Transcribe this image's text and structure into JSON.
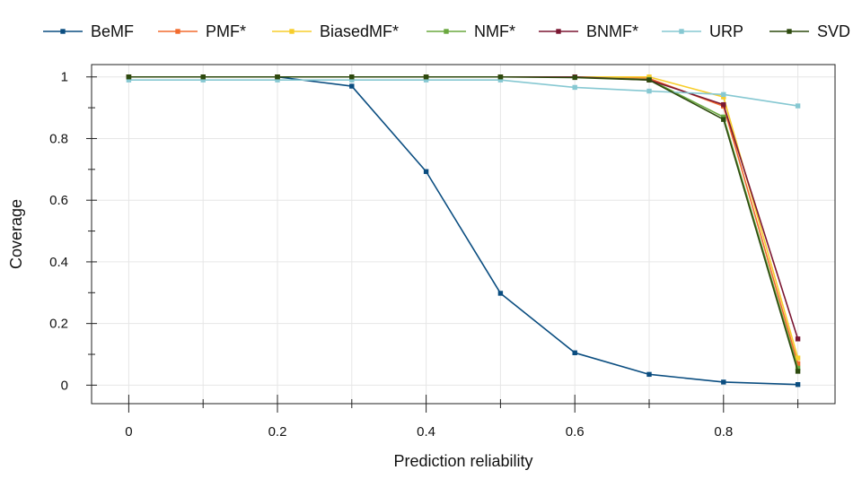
{
  "chart_data": {
    "type": "line",
    "title": "",
    "xlabel": "Prediction reliability",
    "ylabel": "Coverage",
    "x": [
      0,
      0.1,
      0.2,
      0.3,
      0.4,
      0.5,
      0.6,
      0.7,
      0.8,
      0.9
    ],
    "xlim": [
      -0.05,
      0.95
    ],
    "ylim": [
      -0.06,
      1.04
    ],
    "x_ticks": [
      0,
      0.2,
      0.4,
      0.6,
      0.8
    ],
    "x_tick_labels": [
      "0",
      "0.2",
      "0.4",
      "0.6",
      "0.8"
    ],
    "y_ticks": [
      0,
      0.2,
      0.4,
      0.6,
      0.8,
      1
    ],
    "y_tick_labels": [
      "0",
      "0.2",
      "0.4",
      "0.6",
      "0.8",
      "1"
    ],
    "grid": true,
    "legend_position": "top",
    "series": [
      {
        "name": "BeMF",
        "color": "#0a4d80",
        "values": [
          1,
          1,
          1,
          0.97,
          0.693,
          0.298,
          0.105,
          0.035,
          0.01,
          0.002
        ]
      },
      {
        "name": "PMF*",
        "color": "#f26b2e",
        "values": [
          1,
          1,
          1,
          1,
          1,
          1,
          1,
          0.995,
          0.905,
          0.07
        ]
      },
      {
        "name": "BiasedMF*",
        "color": "#f7cd2b",
        "values": [
          1,
          1,
          1,
          1,
          1,
          1,
          1,
          1,
          0.935,
          0.088
        ]
      },
      {
        "name": "NMF*",
        "color": "#6aa83f",
        "values": [
          1,
          1,
          1,
          1,
          1,
          1,
          1,
          0.992,
          0.87,
          0.055
        ]
      },
      {
        "name": "BNMF*",
        "color": "#7b1732",
        "values": [
          1,
          1,
          1,
          1,
          1,
          1,
          1,
          0.99,
          0.91,
          0.15
        ]
      },
      {
        "name": "URP",
        "color": "#86c8d2",
        "values": [
          0.99,
          0.99,
          0.99,
          0.99,
          0.99,
          0.99,
          0.966,
          0.954,
          0.943,
          0.906
        ]
      },
      {
        "name": "SVD",
        "color": "#2d4a0e",
        "values": [
          1,
          1,
          1,
          1,
          1,
          1,
          0.998,
          0.99,
          0.862,
          0.045
        ]
      }
    ]
  }
}
